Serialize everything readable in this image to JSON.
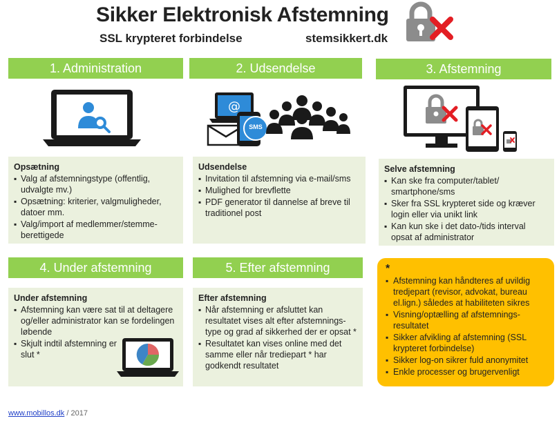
{
  "header": {
    "title": "Sikker Elektronisk Afstemning",
    "subtitle": "SSL krypteret forbindelse",
    "site": "stemsikkert.dk"
  },
  "steps": [
    {
      "label": "1. Administration",
      "box_title": "Opsætning",
      "items": [
        "Valg af afstemningstype (offentlig, udvalgte mv.)",
        "Opsætning: kriterier, valgmuligheder, datoer mm.",
        "Valg/import af medlemmer/stemme-berettigede"
      ]
    },
    {
      "label": "2. Udsendelse",
      "box_title": "Udsendelse",
      "items": [
        "Invitation til afstemning via e-mail/sms",
        "Mulighed for brevflette",
        "PDF generator til dannelse af breve til traditionel post"
      ],
      "sms_label": "SMS"
    },
    {
      "label": "3. Afstemning",
      "box_title": "Selve afstemning",
      "items": [
        "Kan ske fra computer/tablet/ smartphone/sms",
        "Sker fra SSL krypteret side og kræver login eller via unikt link",
        "Kan kun ske i det dato-/tids interval opsat af administrator"
      ]
    },
    {
      "label": "4. Under afstemning",
      "box_title": "Under afstemning",
      "items": [
        "Afstemning kan være sat til at deltagere og/eller administrator kan se fordelingen løbende",
        "Skjult indtil afstemning er slut *"
      ]
    },
    {
      "label": "5. Efter afstemning",
      "box_title": "Efter afstemning",
      "items": [
        "Når afstemning er afsluttet kan resultatet vises alt efter afstemnings-type og grad af sikkerhed der er opsat *",
        "Resultatet kan vises online med det samme eller når trediepart * har godkendt resultatet"
      ]
    }
  ],
  "notes": {
    "marker": "*",
    "items": [
      "Afstemning kan håndteres af uvildig tredjepart (revisor, advokat, bureau el.lign.) således at habiliteten sikres",
      "Visning/optælling  af afstemnings-resultatet",
      "Sikker afvikling af afstemning (SSL krypteret forbindelse)",
      "Sikker log-on sikrer fuld anonymitet",
      "Enkle processer og brugervenligt"
    ]
  },
  "footer": {
    "link": "www.mobillos.dk",
    "year": " / 2017"
  },
  "colors": {
    "step_header": "#92d050",
    "box_bg": "#ebf1de",
    "orange_box": "#ffc000",
    "cross": "#e31e24",
    "lock": "#8c8c8c",
    "icon_blue": "#2e8bd8",
    "device": "#1a1a1a"
  }
}
